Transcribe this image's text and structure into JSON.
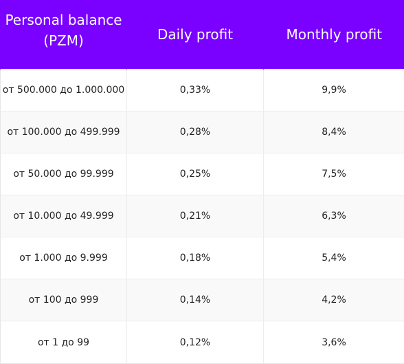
{
  "table": {
    "headers": [
      "Personal balance (PZM)",
      "Daily profit",
      "Monthly profit"
    ],
    "rows": [
      {
        "balance": "от 500.000 до 1.000.000",
        "daily": "0,33%",
        "monthly": "9,9%"
      },
      {
        "balance": "от 100.000 до 499.999",
        "daily": "0,28%",
        "monthly": "8,4%"
      },
      {
        "balance": "от 50.000 до 99.999",
        "daily": "0,25%",
        "monthly": "7,5%"
      },
      {
        "balance": "от 10.000 до 49.999",
        "daily": "0,21%",
        "monthly": "6,3%"
      },
      {
        "balance": "от 1.000 до 9.999",
        "daily": "0,18%",
        "monthly": "5,4%"
      },
      {
        "balance": "от 100 до 999",
        "daily": "0,14%",
        "monthly": "4,2%"
      },
      {
        "balance": "от 1 до 99",
        "daily": "0,12%",
        "monthly": "3,6%"
      }
    ]
  },
  "colors": {
    "header_background": "#7a00ff",
    "header_text": "#ffffff",
    "row_alt_background": "#f9f9f9"
  }
}
